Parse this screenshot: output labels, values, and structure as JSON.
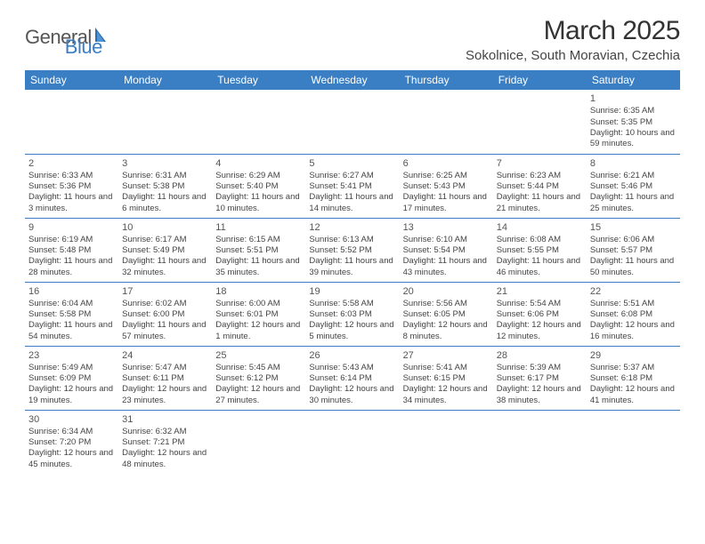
{
  "logo": {
    "general": "General",
    "blue": "Blue"
  },
  "title": "March 2025",
  "location": "Sokolnice, South Moravian, Czechia",
  "colors": {
    "header_bg": "#3a7fc4",
    "header_text": "#ffffff",
    "border": "#3a7fc4",
    "body_text": "#444444",
    "title_text": "#333333",
    "background": "#ffffff"
  },
  "typography": {
    "title_fontsize": 30,
    "location_fontsize": 15,
    "dayheader_fontsize": 12,
    "cell_fontsize": 9.5,
    "daynum_fontsize": 11
  },
  "day_headers": [
    "Sunday",
    "Monday",
    "Tuesday",
    "Wednesday",
    "Thursday",
    "Friday",
    "Saturday"
  ],
  "weeks": [
    [
      null,
      null,
      null,
      null,
      null,
      null,
      {
        "n": "1",
        "sr": "Sunrise: 6:35 AM",
        "ss": "Sunset: 5:35 PM",
        "dl": "Daylight: 10 hours and 59 minutes."
      }
    ],
    [
      {
        "n": "2",
        "sr": "Sunrise: 6:33 AM",
        "ss": "Sunset: 5:36 PM",
        "dl": "Daylight: 11 hours and 3 minutes."
      },
      {
        "n": "3",
        "sr": "Sunrise: 6:31 AM",
        "ss": "Sunset: 5:38 PM",
        "dl": "Daylight: 11 hours and 6 minutes."
      },
      {
        "n": "4",
        "sr": "Sunrise: 6:29 AM",
        "ss": "Sunset: 5:40 PM",
        "dl": "Daylight: 11 hours and 10 minutes."
      },
      {
        "n": "5",
        "sr": "Sunrise: 6:27 AM",
        "ss": "Sunset: 5:41 PM",
        "dl": "Daylight: 11 hours and 14 minutes."
      },
      {
        "n": "6",
        "sr": "Sunrise: 6:25 AM",
        "ss": "Sunset: 5:43 PM",
        "dl": "Daylight: 11 hours and 17 minutes."
      },
      {
        "n": "7",
        "sr": "Sunrise: 6:23 AM",
        "ss": "Sunset: 5:44 PM",
        "dl": "Daylight: 11 hours and 21 minutes."
      },
      {
        "n": "8",
        "sr": "Sunrise: 6:21 AM",
        "ss": "Sunset: 5:46 PM",
        "dl": "Daylight: 11 hours and 25 minutes."
      }
    ],
    [
      {
        "n": "9",
        "sr": "Sunrise: 6:19 AM",
        "ss": "Sunset: 5:48 PM",
        "dl": "Daylight: 11 hours and 28 minutes."
      },
      {
        "n": "10",
        "sr": "Sunrise: 6:17 AM",
        "ss": "Sunset: 5:49 PM",
        "dl": "Daylight: 11 hours and 32 minutes."
      },
      {
        "n": "11",
        "sr": "Sunrise: 6:15 AM",
        "ss": "Sunset: 5:51 PM",
        "dl": "Daylight: 11 hours and 35 minutes."
      },
      {
        "n": "12",
        "sr": "Sunrise: 6:13 AM",
        "ss": "Sunset: 5:52 PM",
        "dl": "Daylight: 11 hours and 39 minutes."
      },
      {
        "n": "13",
        "sr": "Sunrise: 6:10 AM",
        "ss": "Sunset: 5:54 PM",
        "dl": "Daylight: 11 hours and 43 minutes."
      },
      {
        "n": "14",
        "sr": "Sunrise: 6:08 AM",
        "ss": "Sunset: 5:55 PM",
        "dl": "Daylight: 11 hours and 46 minutes."
      },
      {
        "n": "15",
        "sr": "Sunrise: 6:06 AM",
        "ss": "Sunset: 5:57 PM",
        "dl": "Daylight: 11 hours and 50 minutes."
      }
    ],
    [
      {
        "n": "16",
        "sr": "Sunrise: 6:04 AM",
        "ss": "Sunset: 5:58 PM",
        "dl": "Daylight: 11 hours and 54 minutes."
      },
      {
        "n": "17",
        "sr": "Sunrise: 6:02 AM",
        "ss": "Sunset: 6:00 PM",
        "dl": "Daylight: 11 hours and 57 minutes."
      },
      {
        "n": "18",
        "sr": "Sunrise: 6:00 AM",
        "ss": "Sunset: 6:01 PM",
        "dl": "Daylight: 12 hours and 1 minute."
      },
      {
        "n": "19",
        "sr": "Sunrise: 5:58 AM",
        "ss": "Sunset: 6:03 PM",
        "dl": "Daylight: 12 hours and 5 minutes."
      },
      {
        "n": "20",
        "sr": "Sunrise: 5:56 AM",
        "ss": "Sunset: 6:05 PM",
        "dl": "Daylight: 12 hours and 8 minutes."
      },
      {
        "n": "21",
        "sr": "Sunrise: 5:54 AM",
        "ss": "Sunset: 6:06 PM",
        "dl": "Daylight: 12 hours and 12 minutes."
      },
      {
        "n": "22",
        "sr": "Sunrise: 5:51 AM",
        "ss": "Sunset: 6:08 PM",
        "dl": "Daylight: 12 hours and 16 minutes."
      }
    ],
    [
      {
        "n": "23",
        "sr": "Sunrise: 5:49 AM",
        "ss": "Sunset: 6:09 PM",
        "dl": "Daylight: 12 hours and 19 minutes."
      },
      {
        "n": "24",
        "sr": "Sunrise: 5:47 AM",
        "ss": "Sunset: 6:11 PM",
        "dl": "Daylight: 12 hours and 23 minutes."
      },
      {
        "n": "25",
        "sr": "Sunrise: 5:45 AM",
        "ss": "Sunset: 6:12 PM",
        "dl": "Daylight: 12 hours and 27 minutes."
      },
      {
        "n": "26",
        "sr": "Sunrise: 5:43 AM",
        "ss": "Sunset: 6:14 PM",
        "dl": "Daylight: 12 hours and 30 minutes."
      },
      {
        "n": "27",
        "sr": "Sunrise: 5:41 AM",
        "ss": "Sunset: 6:15 PM",
        "dl": "Daylight: 12 hours and 34 minutes."
      },
      {
        "n": "28",
        "sr": "Sunrise: 5:39 AM",
        "ss": "Sunset: 6:17 PM",
        "dl": "Daylight: 12 hours and 38 minutes."
      },
      {
        "n": "29",
        "sr": "Sunrise: 5:37 AM",
        "ss": "Sunset: 6:18 PM",
        "dl": "Daylight: 12 hours and 41 minutes."
      }
    ],
    [
      {
        "n": "30",
        "sr": "Sunrise: 6:34 AM",
        "ss": "Sunset: 7:20 PM",
        "dl": "Daylight: 12 hours and 45 minutes."
      },
      {
        "n": "31",
        "sr": "Sunrise: 6:32 AM",
        "ss": "Sunset: 7:21 PM",
        "dl": "Daylight: 12 hours and 48 minutes."
      },
      null,
      null,
      null,
      null,
      null
    ]
  ]
}
